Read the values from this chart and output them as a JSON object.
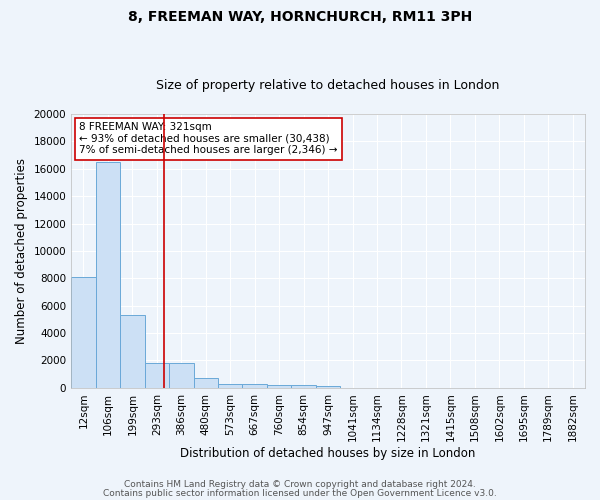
{
  "title1": "8, FREEMAN WAY, HORNCHURCH, RM11 3PH",
  "title2": "Size of property relative to detached houses in London",
  "xlabel": "Distribution of detached houses by size in London",
  "ylabel": "Number of detached properties",
  "bin_labels": [
    "12sqm",
    "106sqm",
    "199sqm",
    "293sqm",
    "386sqm",
    "480sqm",
    "573sqm",
    "667sqm",
    "760sqm",
    "854sqm",
    "947sqm",
    "1041sqm",
    "1134sqm",
    "1228sqm",
    "1321sqm",
    "1415sqm",
    "1508sqm",
    "1602sqm",
    "1695sqm",
    "1789sqm",
    "1882sqm"
  ],
  "bar_heights": [
    8100,
    16500,
    5300,
    1800,
    1800,
    700,
    300,
    250,
    220,
    180,
    160,
    0,
    0,
    0,
    0,
    0,
    0,
    0,
    0,
    0,
    0
  ],
  "bar_color": "#cce0f5",
  "bar_edge_color": "#6aa8d8",
  "background_color": "#eef4fb",
  "grid_color": "#ffffff",
  "vline_x": 3.3,
  "vline_color": "#cc0000",
  "annotation_line1": "8 FREEMAN WAY: 321sqm",
  "annotation_line2": "← 93% of detached houses are smaller (30,438)",
  "annotation_line3": "7% of semi-detached houses are larger (2,346) →",
  "annotation_box_color": "#ffffff",
  "annotation_box_edge_color": "#cc0000",
  "ylim": [
    0,
    20000
  ],
  "yticks": [
    0,
    2000,
    4000,
    6000,
    8000,
    10000,
    12000,
    14000,
    16000,
    18000,
    20000
  ],
  "footer1": "Contains HM Land Registry data © Crown copyright and database right 2024.",
  "footer2": "Contains public sector information licensed under the Open Government Licence v3.0.",
  "title1_fontsize": 10,
  "title2_fontsize": 9,
  "xlabel_fontsize": 8.5,
  "ylabel_fontsize": 8.5,
  "tick_fontsize": 7.5,
  "annotation_fontsize": 7.5,
  "footer_fontsize": 6.5
}
